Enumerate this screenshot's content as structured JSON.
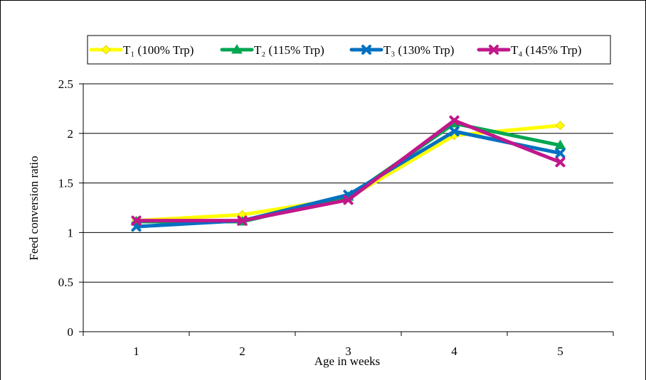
{
  "chart_data": {
    "type": "line",
    "title": "",
    "xlabel": "Age in weeks",
    "ylabel": "Feed conversion ratio",
    "categories": [
      "1",
      "2",
      "3",
      "4",
      "5"
    ],
    "ylim": [
      0,
      2.5
    ],
    "yticks": [
      "0",
      "0.5",
      "1",
      "1.5",
      "2",
      "2.5"
    ],
    "grid": "horizontal",
    "legend_position": "top",
    "series": [
      {
        "name": "T₁ (100% Trp)",
        "color": "#ffff00",
        "marker": "diamond",
        "values": [
          1.12,
          1.18,
          1.35,
          1.98,
          2.08
        ]
      },
      {
        "name": "T₂ (115% Trp)",
        "color": "#00a650",
        "marker": "triangle",
        "values": [
          1.11,
          1.11,
          1.36,
          2.1,
          1.88
        ]
      },
      {
        "name": "T₃ (130% Trp)",
        "color": "#0070c0",
        "marker": "x",
        "values": [
          1.06,
          1.12,
          1.38,
          2.02,
          1.8
        ]
      },
      {
        "name": "T₄ (145% Trp)",
        "color": "#c0188c",
        "marker": "x",
        "values": [
          1.12,
          1.12,
          1.33,
          2.13,
          1.71
        ]
      }
    ]
  }
}
